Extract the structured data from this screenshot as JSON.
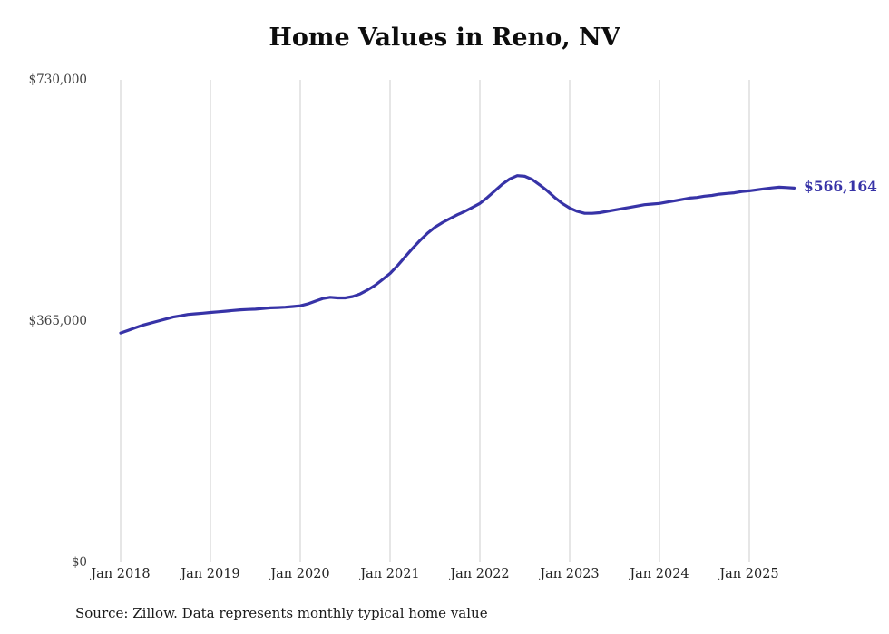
{
  "title": "Home Values in Reno, NV",
  "source_note": "Source: Zillow. Data represents monthly typical home value",
  "colors": {
    "line": "#3733a7",
    "grid": "#cccccc",
    "axis_text": "#3f3f3f",
    "title_text": "#0d0d0d"
  },
  "chart_data": {
    "type": "line",
    "title": "Home Values in Reno, NV",
    "xlabel": "",
    "ylabel": "",
    "ylim": [
      0,
      730000
    ],
    "grid": "vertical-only",
    "legend": "none",
    "y_ticks": [
      {
        "value": 730000,
        "label": "$730,000"
      },
      {
        "value": 365000,
        "label": "$365,000"
      },
      {
        "value": 0,
        "label": "$0"
      }
    ],
    "x_ticks": [
      "Jan 2018",
      "Jan 2019",
      "Jan 2020",
      "Jan 2021",
      "Jan 2022",
      "Jan 2023",
      "Jan 2024",
      "Jan 2025"
    ],
    "final_value": 566164,
    "final_value_label": "$566,164",
    "series": [
      {
        "name": "Typical home value",
        "color": "#3733a7",
        "x_start": "2018-01",
        "x_frequency": "monthly",
        "values": [
          347000,
          351000,
          355000,
          359000,
          362000,
          365000,
          368000,
          371000,
          373000,
          375000,
          376000,
          377000,
          378000,
          379000,
          380000,
          381000,
          382000,
          382500,
          383000,
          384000,
          385000,
          385500,
          386000,
          387000,
          388000,
          391000,
          395000,
          399000,
          401000,
          400000,
          400000,
          402000,
          406000,
          412000,
          419000,
          428000,
          437000,
          449000,
          462000,
          475000,
          487000,
          498000,
          507000,
          514000,
          520000,
          526000,
          531000,
          537000,
          543000,
          552000,
          562000,
          572000,
          580000,
          585000,
          584000,
          579000,
          571000,
          562000,
          552000,
          543000,
          536000,
          531000,
          528000,
          528000,
          529000,
          531000,
          533000,
          535000,
          537000,
          539000,
          541000,
          542000,
          543000,
          545000,
          547000,
          549000,
          551000,
          552000,
          554000,
          555000,
          557000,
          558000,
          559000,
          561000,
          562000,
          563500,
          565000,
          566500,
          567500,
          567000,
          566164
        ]
      }
    ]
  }
}
